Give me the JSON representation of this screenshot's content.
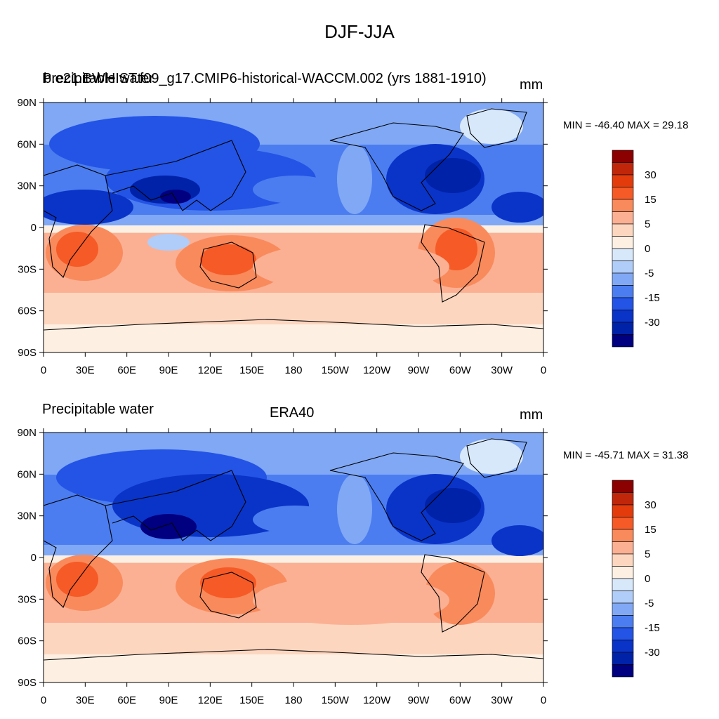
{
  "figure_title": "DJF-JJA",
  "panels": [
    {
      "left_string": "Precipitable water",
      "center_string": "b.e21.BWHIST.f09_g17.CMIP6-historical-WACCM.002 (yrs 1881-1910)",
      "right_string": "mm",
      "minmax": "MIN = -46.40 MAX =  29.18"
    },
    {
      "left_string": "Precipitable water",
      "center_string": "ERA40",
      "right_string": "mm",
      "minmax": "MIN = -45.71 MAX =  31.38"
    }
  ],
  "lat_ticks": [
    "90N",
    "60N",
    "30N",
    "0",
    "30S",
    "60S",
    "90S"
  ],
  "lon_ticks": [
    "0",
    "30E",
    "60E",
    "90E",
    "120E",
    "150E",
    "180",
    "150W",
    "120W",
    "90W",
    "60W",
    "30W",
    "0"
  ],
  "colorbar": {
    "labels": [
      "30",
      "15",
      "5",
      "0",
      "-5",
      "-15",
      "-30"
    ],
    "colors": [
      "#8b0000",
      "#c0260a",
      "#e33b0c",
      "#f65a26",
      "#f98a5c",
      "#fbb093",
      "#fdd6c0",
      "#fdf0e3",
      "#d8e8fb",
      "#b0ccf8",
      "#80a8f4",
      "#4b7df0",
      "#2354e6",
      "#0a34c8",
      "#0022a8",
      "#000080"
    ]
  },
  "map_colors": {
    "ocean_base": "#80a8f4",
    "south_base": "#fdd6c0",
    "coastline": "#000000"
  }
}
